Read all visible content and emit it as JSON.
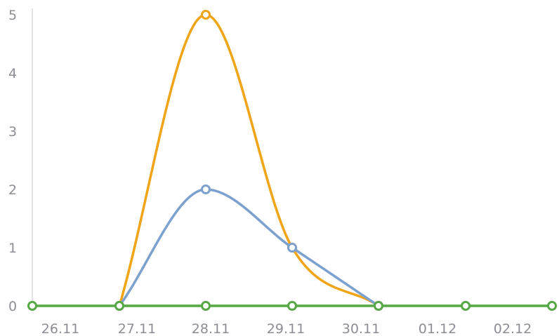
{
  "chart_data": {
    "type": "line",
    "title": "",
    "xlabel": "",
    "ylabel": "",
    "categories": [
      "26.11",
      "27.11",
      "28.11",
      "29.11",
      "30.11",
      "01.12",
      "02.12"
    ],
    "y_ticks": [
      "0",
      "1",
      "2",
      "3",
      "4",
      "5"
    ],
    "ylim": [
      0,
      5
    ],
    "grid": false,
    "legend": "none",
    "series": [
      {
        "color": "#f0a418",
        "smooth": true,
        "points": [
          [
            "27.11",
            0
          ],
          [
            "28.11",
            5
          ],
          [
            "29.11",
            1
          ],
          [
            "30.11",
            0
          ]
        ]
      },
      {
        "color": "#7ca1cf",
        "smooth": true,
        "points": [
          [
            "27.11",
            0
          ],
          [
            "28.11",
            2
          ],
          [
            "29.11",
            1
          ],
          [
            "30.11",
            0
          ]
        ]
      },
      {
        "color": "#56a845",
        "smooth": true,
        "points": [
          [
            "26.11",
            0
          ],
          [
            "27.11",
            0
          ],
          [
            "28.11",
            0
          ],
          [
            "29.11",
            0
          ],
          [
            "30.11",
            0
          ],
          [
            "01.12",
            0
          ],
          [
            "02.12",
            0
          ]
        ]
      }
    ],
    "colors": {
      "axis": "#c8c8c8",
      "tick_text": "#8d8d96",
      "marker_fill": "#ffffff"
    }
  }
}
